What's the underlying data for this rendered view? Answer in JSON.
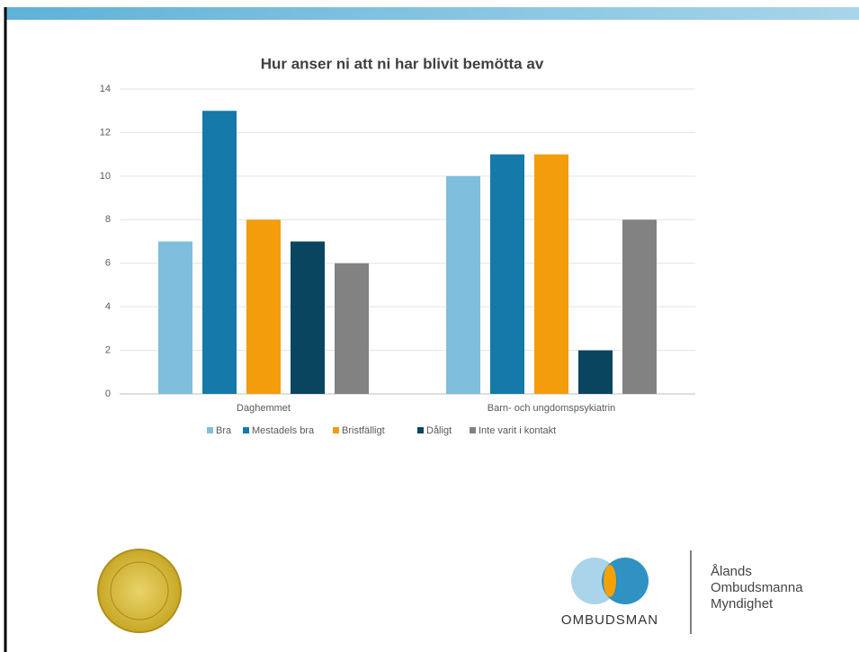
{
  "chart_data": {
    "type": "bar",
    "title": "Hur anser ni att ni har blivit bemötta av",
    "categories": [
      "Daghemmet",
      "Barn- och ungdomspsykiatrin"
    ],
    "series": [
      {
        "name": "Bra",
        "color": "#7fbedd",
        "values": [
          7,
          10
        ]
      },
      {
        "name": "Mestadels bra",
        "color": "#1579a9",
        "values": [
          13,
          11
        ]
      },
      {
        "name": "Bristfälligt",
        "color": "#f39c0c",
        "values": [
          8,
          11
        ]
      },
      {
        "name": "Dåligt",
        "color": "#0a4560",
        "values": [
          7,
          2
        ]
      },
      {
        "name": "Inte varit i kontakt",
        "color": "#828282",
        "values": [
          6,
          8
        ]
      }
    ],
    "ylim": [
      0,
      14
    ],
    "yticks": [
      0,
      2,
      4,
      6,
      8,
      10,
      12,
      14
    ],
    "grid": true,
    "legend": "bottom"
  },
  "logo": {
    "brand": "OMBUDSMAN",
    "name": [
      "Ålands",
      "Ombudsmanna",
      "Myndighet"
    ]
  }
}
